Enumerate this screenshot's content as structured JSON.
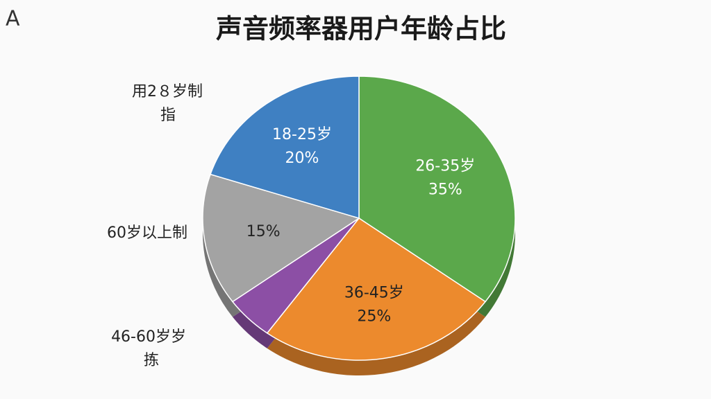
{
  "corner_label": "A",
  "chart_data": {
    "type": "pie",
    "title": "声音频率器用户年龄占比",
    "categories": [
      "26-35岁",
      "36-45岁",
      null,
      null,
      "18-25岁"
    ],
    "values": [
      35,
      25,
      5,
      15,
      20
    ],
    "value_labels": [
      "35%",
      "25%",
      null,
      "15%",
      "20%"
    ],
    "colors": [
      "#5ba84b",
      "#ec8a2d",
      "#8c4fa5",
      "#a3a3a3",
      "#3f80c2"
    ],
    "annotations": [
      [
        "用2８岁制",
        "指"
      ],
      [
        "60岁以上制"
      ],
      [
        "46-60岁岁",
        "拣"
      ]
    ]
  }
}
